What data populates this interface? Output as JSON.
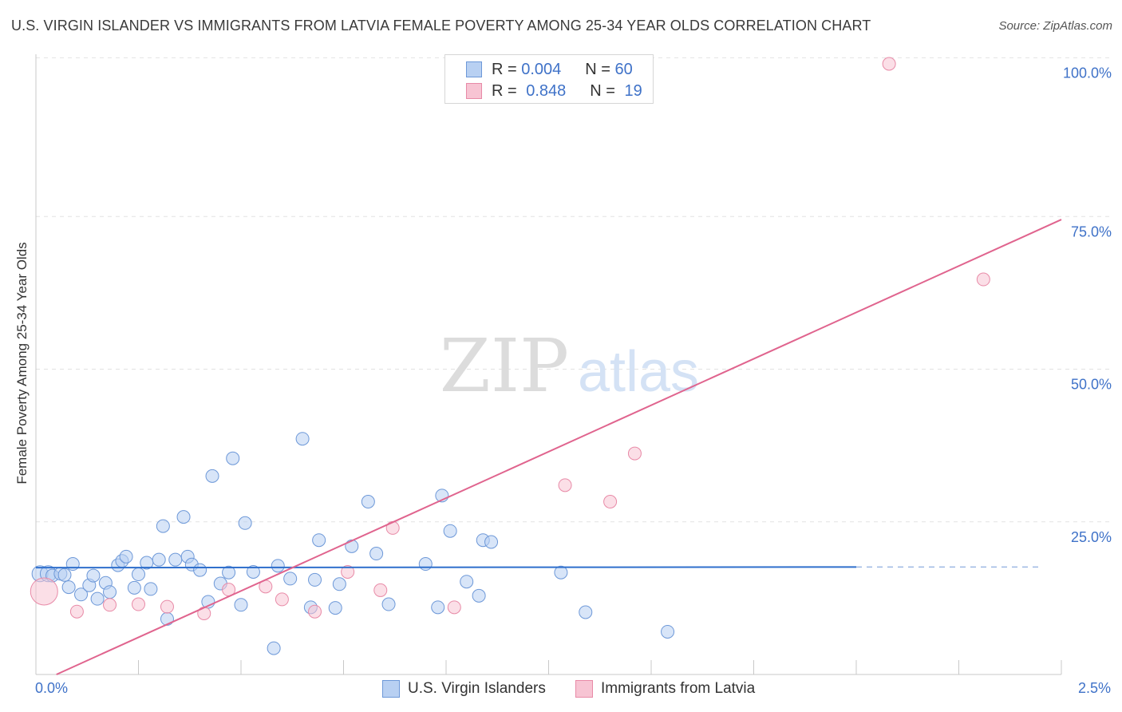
{
  "title": "U.S. VIRGIN ISLANDER VS IMMIGRANTS FROM LATVIA FEMALE POVERTY AMONG 25-34 YEAR OLDS CORRELATION CHART",
  "source": "Source: ZipAtlas.com",
  "watermark": {
    "zip": "ZIP",
    "atlas": "atlas"
  },
  "legend_top": {
    "rows": [
      {
        "r_label": "R =",
        "r_value": "0.004",
        "n_label": "N =",
        "n_value": "60"
      },
      {
        "r_label": "R =",
        "r_value": "0.848",
        "n_label": "N =",
        "n_value": "19"
      }
    ]
  },
  "chart_data": {
    "type": "scatter",
    "title": "U.S. VIRGIN ISLANDER VS IMMIGRANTS FROM LATVIA FEMALE POVERTY AMONG 25-34 YEAR OLDS CORRELATION CHART",
    "xlabel": "",
    "ylabel": "Female Poverty Among 25-34 Year Olds",
    "xlim": [
      0,
      2.5
    ],
    "ylim": [
      0,
      100
    ],
    "x_tick_labels": [
      "0.0%",
      "2.5%"
    ],
    "y_ticks": [
      25,
      50,
      75,
      100
    ],
    "y_tick_labels": [
      "25.0%",
      "50.0%",
      "75.0%",
      "100.0%"
    ],
    "grid": true,
    "legend_position": "bottom",
    "colors": {
      "blue_fill": "#b8d0f2",
      "blue_stroke": "#6d98d8",
      "blue_line": "#2f6fcc",
      "pink_fill": "#f7c4d3",
      "pink_stroke": "#e88aa7",
      "pink_line": "#e0648e"
    },
    "series": [
      {
        "name": "U.S. Virgin Islanders",
        "r": 0.004,
        "n": 60,
        "trend": {
          "x0": 0.0,
          "y0": 17.5,
          "x1": 2.0,
          "y1": 17.6,
          "dash_to": 2.45
        },
        "points": [
          [
            0.01,
            16.5
          ],
          [
            0.03,
            16.5
          ],
          [
            0.04,
            16.2
          ],
          [
            0.06,
            16.5
          ],
          [
            0.07,
            16.3
          ],
          [
            0.09,
            18.1
          ],
          [
            0.08,
            14.3
          ],
          [
            0.11,
            13.1
          ],
          [
            0.13,
            14.6
          ],
          [
            0.14,
            16.2
          ],
          [
            0.15,
            12.4
          ],
          [
            0.17,
            15.0
          ],
          [
            0.18,
            13.5
          ],
          [
            0.2,
            17.9
          ],
          [
            0.21,
            18.6
          ],
          [
            0.22,
            19.3
          ],
          [
            0.24,
            14.2
          ],
          [
            0.25,
            16.4
          ],
          [
            0.27,
            18.3
          ],
          [
            0.28,
            14.0
          ],
          [
            0.3,
            18.8
          ],
          [
            0.31,
            24.3
          ],
          [
            0.32,
            9.1
          ],
          [
            0.34,
            18.8
          ],
          [
            0.36,
            25.8
          ],
          [
            0.37,
            19.3
          ],
          [
            0.38,
            18.0
          ],
          [
            0.4,
            17.1
          ],
          [
            0.42,
            11.9
          ],
          [
            0.43,
            32.5
          ],
          [
            0.45,
            14.9
          ],
          [
            0.47,
            16.7
          ],
          [
            0.48,
            35.4
          ],
          [
            0.5,
            11.4
          ],
          [
            0.51,
            24.8
          ],
          [
            0.53,
            16.8
          ],
          [
            0.58,
            4.3
          ],
          [
            0.59,
            17.8
          ],
          [
            0.62,
            15.7
          ],
          [
            0.65,
            38.6
          ],
          [
            0.67,
            11.0
          ],
          [
            0.68,
            15.5
          ],
          [
            0.69,
            22.0
          ],
          [
            0.73,
            10.9
          ],
          [
            0.74,
            14.8
          ],
          [
            0.77,
            21.0
          ],
          [
            0.81,
            28.3
          ],
          [
            0.83,
            19.8
          ],
          [
            0.86,
            11.5
          ],
          [
            0.95,
            18.1
          ],
          [
            0.98,
            11.0
          ],
          [
            0.99,
            29.3
          ],
          [
            1.01,
            23.5
          ],
          [
            1.05,
            15.2
          ],
          [
            1.08,
            12.9
          ],
          [
            1.09,
            22.0
          ],
          [
            1.11,
            21.7
          ],
          [
            1.28,
            16.7
          ],
          [
            1.34,
            10.2
          ],
          [
            1.54,
            7.0
          ]
        ]
      },
      {
        "name": "Immigrants from Latvia",
        "r": 0.848,
        "n": 19,
        "trend": {
          "x0": 0.05,
          "y0": 0.0,
          "x1": 2.5,
          "y1": 74.5
        },
        "points": [
          [
            0.02,
            13.6
          ],
          [
            0.1,
            10.3
          ],
          [
            0.18,
            11.4
          ],
          [
            0.25,
            11.5
          ],
          [
            0.32,
            11.1
          ],
          [
            0.41,
            10.0
          ],
          [
            0.47,
            13.9
          ],
          [
            0.56,
            14.4
          ],
          [
            0.6,
            12.3
          ],
          [
            0.68,
            10.3
          ],
          [
            0.76,
            16.8
          ],
          [
            0.84,
            13.8
          ],
          [
            0.87,
            24.0
          ],
          [
            1.02,
            11.0
          ],
          [
            1.29,
            31.0
          ],
          [
            1.4,
            28.3
          ],
          [
            1.46,
            36.2
          ],
          [
            2.08,
            100.0
          ],
          [
            2.31,
            64.7
          ]
        ]
      }
    ]
  }
}
